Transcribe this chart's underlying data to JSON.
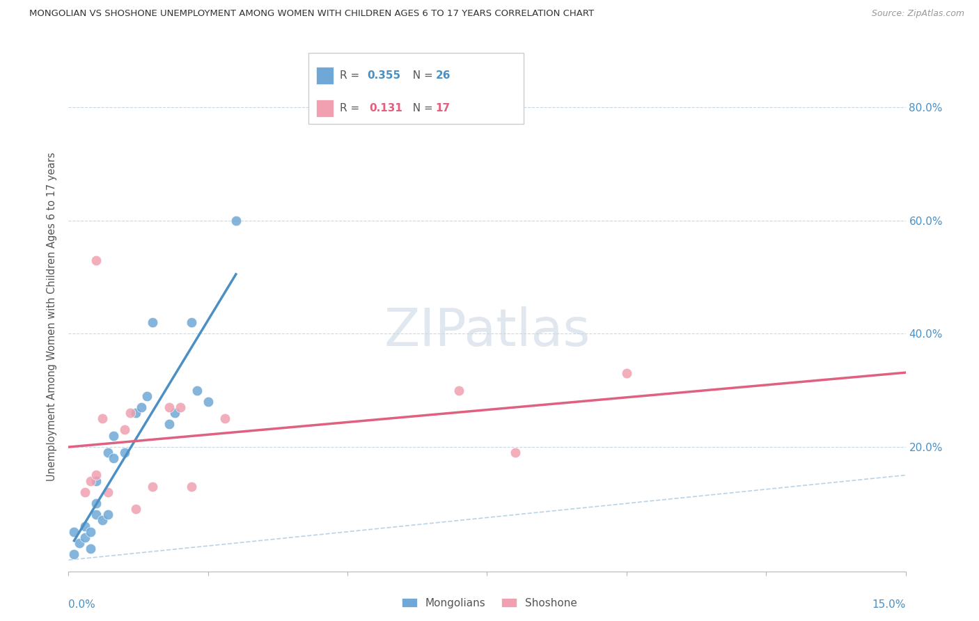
{
  "title": "MONGOLIAN VS SHOSHONE UNEMPLOYMENT AMONG WOMEN WITH CHILDREN AGES 6 TO 17 YEARS CORRELATION CHART",
  "source": "Source: ZipAtlas.com",
  "ylabel": "Unemployment Among Women with Children Ages 6 to 17 years",
  "xlim": [
    0.0,
    0.15
  ],
  "ylim": [
    -0.02,
    0.88
  ],
  "mongolian_x": [
    0.001,
    0.002,
    0.003,
    0.003,
    0.004,
    0.004,
    0.005,
    0.005,
    0.005,
    0.006,
    0.007,
    0.007,
    0.008,
    0.008,
    0.01,
    0.012,
    0.013,
    0.014,
    0.015,
    0.018,
    0.019,
    0.022,
    0.023,
    0.025,
    0.03,
    0.001
  ],
  "mongolian_y": [
    0.05,
    0.03,
    0.04,
    0.06,
    0.02,
    0.05,
    0.1,
    0.08,
    0.14,
    0.07,
    0.08,
    0.19,
    0.18,
    0.22,
    0.19,
    0.26,
    0.27,
    0.29,
    0.42,
    0.24,
    0.26,
    0.42,
    0.3,
    0.28,
    0.6,
    0.01
  ],
  "shoshone_x": [
    0.003,
    0.004,
    0.005,
    0.005,
    0.006,
    0.007,
    0.01,
    0.011,
    0.012,
    0.015,
    0.018,
    0.02,
    0.022,
    0.028,
    0.07,
    0.08,
    0.1
  ],
  "shoshone_y": [
    0.12,
    0.14,
    0.15,
    0.53,
    0.25,
    0.12,
    0.23,
    0.26,
    0.09,
    0.13,
    0.27,
    0.27,
    0.13,
    0.25,
    0.3,
    0.19,
    0.33
  ],
  "mongolian_color": "#6fa8d6",
  "shoshone_color": "#f0a0b0",
  "trend_blue": "#4a90c4",
  "trend_pink": "#e06080",
  "diagonal_color": "#a8c8e0",
  "background_color": "#ffffff",
  "ytick_positions": [
    0.2,
    0.4,
    0.6,
    0.8
  ],
  "ytick_labels_list": [
    "20.0%",
    "40.0%",
    "60.0%",
    "80.0%"
  ],
  "grid_color": "#c8d8e4",
  "marker_size": 110
}
